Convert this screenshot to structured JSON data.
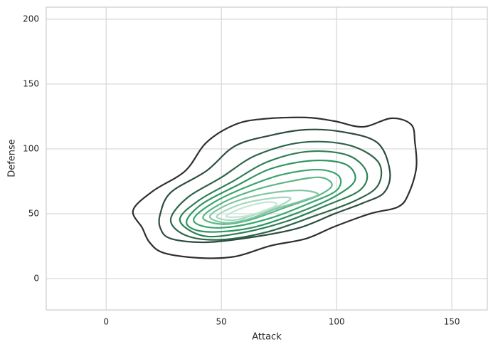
{
  "chart_data": {
    "type": "contour",
    "x_label": "Attack",
    "y_label": "Defense",
    "xlim": [
      -26,
      165.4
    ],
    "ylim": [
      -24.2,
      209.3
    ],
    "xticks": [
      0,
      50,
      100,
      150
    ],
    "yticks": [
      0,
      50,
      100,
      150,
      200
    ],
    "grid": true,
    "series": [
      {
        "color": "#2f2f2f",
        "x": [
          11.7,
          20.4,
          34.3,
          43.5,
          55.9,
          68.2,
          86.7,
          99.1,
          111.4,
          123.8,
          132.4,
          134.0,
          134.6,
          131.5,
          126.9,
          114.5,
          99.1,
          86.7,
          71.3,
          55.9,
          40.4,
          25.0,
          18.8,
          15.7
        ],
        "y": [
          52.7,
          67.6,
          83.0,
          104.9,
          118.7,
          123.1,
          124.2,
          121.4,
          117.0,
          123.6,
          118.7,
          104.9,
          85.7,
          66.5,
          55.5,
          50.0,
          40.1,
          30.8,
          25.3,
          17.0,
          15.9,
          19.8,
          28.0,
          39.0
        ]
      },
      {
        "color": "#2e4d3f",
        "x": [
          23.5,
          28.1,
          43.5,
          55.9,
          71.3,
          86.7,
          102.2,
          117.6,
          123.1,
          120.7,
          111.4,
          99.1,
          83.6,
          65.1,
          43.5,
          28.1,
          23.5
        ],
        "y": [
          50.0,
          66.5,
          83.0,
          102.2,
          110.4,
          114.8,
          113.2,
          104.9,
          83.0,
          66.5,
          58.2,
          50.0,
          39.0,
          32.4,
          28.0,
          30.8,
          39.0
        ]
      },
      {
        "color": "#2f6449",
        "x": [
          28,
          35,
          50,
          65,
          85,
          105,
          118,
          118,
          108,
          90,
          70,
          50,
          35
        ],
        "y": [
          45,
          62,
          78,
          95,
          105,
          103,
          90,
          72,
          60,
          48,
          36,
          30,
          33
        ]
      },
      {
        "color": "#2e7d54",
        "x": [
          32,
          40,
          55,
          70,
          88,
          105,
          113,
          110,
          95,
          78,
          58,
          42
        ],
        "y": [
          45,
          60,
          75,
          90,
          98,
          95,
          82,
          68,
          56,
          44,
          35,
          33
        ]
      },
      {
        "color": "#2f9460",
        "x": [
          35,
          42,
          57,
          72,
          90,
          104,
          108,
          100,
          85,
          65,
          48,
          38
        ],
        "y": [
          45,
          58,
          72,
          85,
          91,
          88,
          76,
          64,
          52,
          40,
          36,
          38
        ]
      },
      {
        "color": "#3aa56e",
        "x": [
          38,
          46,
          60,
          76,
          92,
          101,
          100,
          88,
          72,
          55,
          43
        ],
        "y": [
          46,
          58,
          70,
          80,
          84,
          79,
          68,
          58,
          47,
          40,
          40
        ]
      },
      {
        "color": "#5db588",
        "x": [
          42,
          50,
          64,
          80,
          93,
          98,
          92,
          78,
          62,
          50
        ],
        "y": [
          47,
          58,
          68,
          75,
          78,
          72,
          64,
          55,
          45,
          42
        ]
      },
      {
        "color": "#82c6a3",
        "x": [
          45,
          54,
          68,
          84,
          92,
          85,
          74,
          62,
          52
        ],
        "y": [
          48,
          58,
          65,
          68,
          65,
          60,
          54,
          46,
          43
        ]
      },
      {
        "color": "#a6d8c0",
        "x": [
          48,
          58,
          72,
          80,
          75,
          64,
          55
        ],
        "y": [
          48,
          57,
          62,
          62,
          56,
          49,
          45
        ]
      },
      {
        "color": "#c3e6d4",
        "x": [
          52,
          60,
          70,
          74,
          68,
          60
        ],
        "y": [
          48,
          55,
          59,
          57,
          52,
          48
        ]
      }
    ]
  }
}
